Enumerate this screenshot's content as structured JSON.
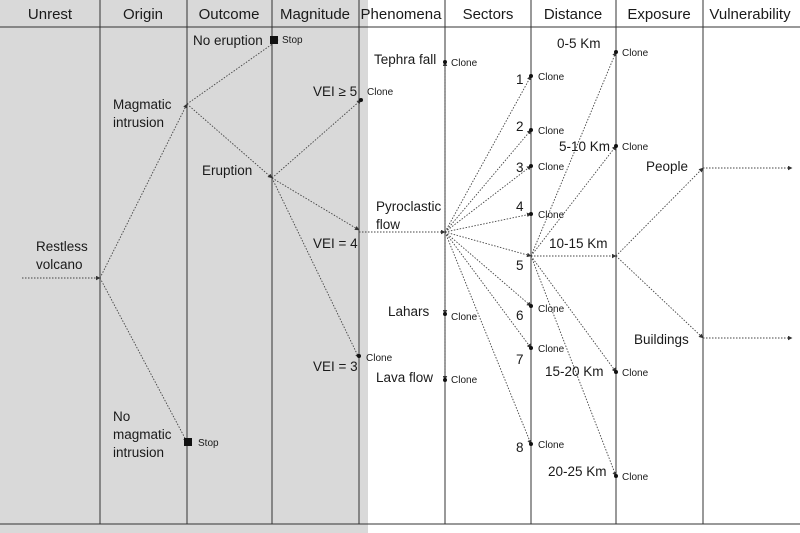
{
  "columns": [
    "Unrest",
    "Origin",
    "Outcome",
    "Magnitude",
    "Phenomena",
    "Sectors",
    "Distance",
    "Exposure",
    "Vulnerability"
  ],
  "nodes": {
    "restless_volcano": [
      "Restless",
      "volcano"
    ],
    "magmatic_intrusion": [
      "Magmatic",
      "intrusion"
    ],
    "no_magmatic_intrusion": [
      "No",
      "magmatic",
      "intrusion"
    ],
    "no_eruption": "No eruption",
    "eruption": "Eruption",
    "vei5": "VEI ≥ 5",
    "vei4": "VEI = 4",
    "vei3": "VEI = 3",
    "tephra_fall": "Tephra fall",
    "pyroclastic_flow": [
      "Pyroclastic",
      "flow"
    ],
    "lahars": "Lahars",
    "lava_flow": "Lava flow",
    "sectors": [
      "1",
      "2",
      "3",
      "4",
      "5",
      "6",
      "7",
      "8"
    ],
    "distances": [
      "0-5 Km",
      "5-10 Km",
      "10-15 Km",
      "15-20 Km",
      "20-25 Km"
    ],
    "people": "People",
    "buildings": "Buildings"
  },
  "markers": {
    "stop": "Stop",
    "clone": "Clone"
  },
  "colors": {
    "shade": "#d9d9d9",
    "line": "#333333",
    "dotted": "#444444"
  }
}
